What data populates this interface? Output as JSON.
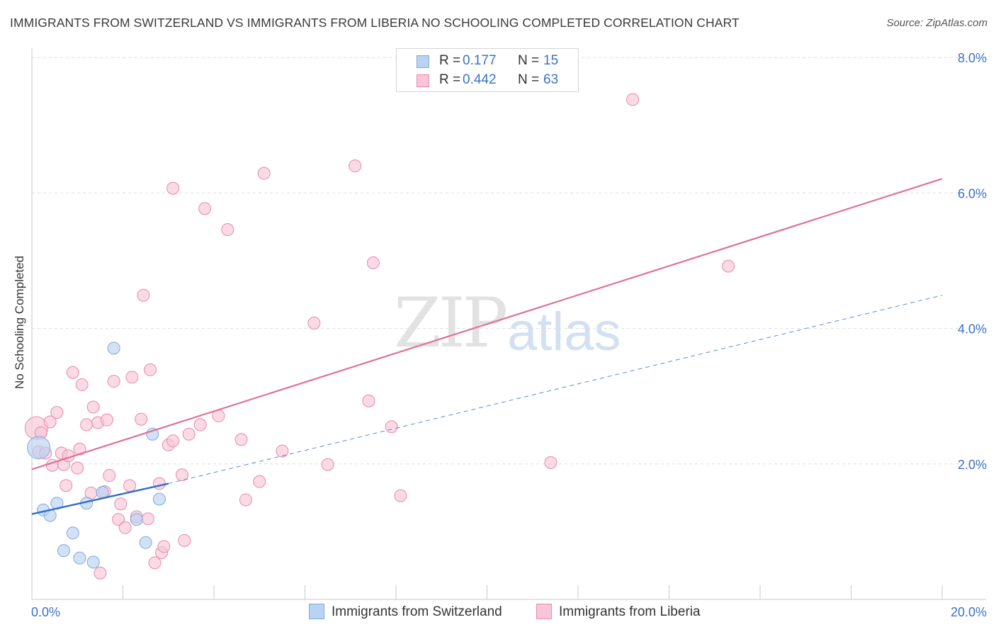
{
  "header": {
    "title": "IMMIGRANTS FROM SWITZERLAND VS IMMIGRANTS FROM LIBERIA NO SCHOOLING COMPLETED CORRELATION CHART",
    "source": "Source: ZipAtlas.com"
  },
  "watermark": {
    "zip": "ZIP",
    "atlas": "atlas"
  },
  "legend": {
    "series1": {
      "r_label": "R =",
      "r_value": "0.177",
      "n_label": "N =",
      "n_value": "15"
    },
    "series2": {
      "r_label": "R =",
      "r_value": "0.442",
      "n_label": "N =",
      "n_value": "63"
    }
  },
  "colors": {
    "switzerland_fill": "#b9d3f3",
    "switzerland_stroke": "#7fa8dc",
    "switzerland_line": "#2f6fcc",
    "liberia_fill": "#f8c6d6",
    "liberia_stroke": "#e98aab",
    "liberia_line": "#e0709a",
    "grid": "#dddddd",
    "axis_text": "#3a72c8"
  },
  "chart_data": {
    "type": "scatter",
    "title": "IMMIGRANTS FROM SWITZERLAND VS IMMIGRANTS FROM LIBERIA NO SCHOOLING COMPLETED CORRELATION CHART",
    "xlabel": "",
    "ylabel": "No Schooling Completed",
    "xlim": [
      0,
      20
    ],
    "ylim": [
      0,
      8
    ],
    "x_tick_labels": [
      "0.0%",
      "20.0%"
    ],
    "y_ticks": [
      2,
      4,
      6,
      8
    ],
    "y_tick_labels": [
      "2.0%",
      "4.0%",
      "6.0%",
      "8.0%"
    ],
    "grid": true,
    "legend_position": "top-center",
    "series": [
      {
        "name": "Immigrants from Switzerland",
        "r": 0.177,
        "n": 15,
        "trend": {
          "x": [
            0,
            3.0
          ],
          "y": [
            1.26,
            1.71
          ],
          "extended": {
            "x": [
              3.0,
              20
            ],
            "y": [
              1.71,
              4.49
            ]
          }
        },
        "points": [
          {
            "x": 0.15,
            "y": 2.24,
            "big": true
          },
          {
            "x": 0.25,
            "y": 1.32
          },
          {
            "x": 0.4,
            "y": 1.24
          },
          {
            "x": 0.55,
            "y": 1.42
          },
          {
            "x": 0.7,
            "y": 0.72
          },
          {
            "x": 0.9,
            "y": 0.98
          },
          {
            "x": 1.05,
            "y": 0.61
          },
          {
            "x": 1.2,
            "y": 1.42
          },
          {
            "x": 1.35,
            "y": 0.55
          },
          {
            "x": 1.55,
            "y": 1.58
          },
          {
            "x": 1.8,
            "y": 3.71
          },
          {
            "x": 2.3,
            "y": 1.18
          },
          {
            "x": 2.5,
            "y": 0.84
          },
          {
            "x": 2.65,
            "y": 2.44
          },
          {
            "x": 2.8,
            "y": 1.48
          }
        ]
      },
      {
        "name": "Immigrants from Liberia",
        "r": 0.442,
        "n": 63,
        "trend": {
          "x": [
            0,
            20
          ],
          "y": [
            1.92,
            6.21
          ]
        },
        "points": [
          {
            "x": 0.1,
            "y": 2.53,
            "big": true
          },
          {
            "x": 0.15,
            "y": 2.18
          },
          {
            "x": 0.2,
            "y": 2.46
          },
          {
            "x": 0.3,
            "y": 2.16
          },
          {
            "x": 0.4,
            "y": 2.62
          },
          {
            "x": 0.45,
            "y": 1.98
          },
          {
            "x": 0.55,
            "y": 2.76
          },
          {
            "x": 0.65,
            "y": 2.16
          },
          {
            "x": 0.7,
            "y": 1.99
          },
          {
            "x": 0.75,
            "y": 1.68
          },
          {
            "x": 0.8,
            "y": 2.12
          },
          {
            "x": 0.9,
            "y": 3.35
          },
          {
            "x": 1.0,
            "y": 1.94
          },
          {
            "x": 1.05,
            "y": 2.22
          },
          {
            "x": 1.1,
            "y": 3.17
          },
          {
            "x": 1.2,
            "y": 2.58
          },
          {
            "x": 1.3,
            "y": 1.57
          },
          {
            "x": 1.35,
            "y": 2.84
          },
          {
            "x": 1.45,
            "y": 2.61
          },
          {
            "x": 1.5,
            "y": 0.39
          },
          {
            "x": 1.6,
            "y": 1.59
          },
          {
            "x": 1.65,
            "y": 2.65
          },
          {
            "x": 1.7,
            "y": 1.83
          },
          {
            "x": 1.8,
            "y": 3.22
          },
          {
            "x": 1.9,
            "y": 1.18
          },
          {
            "x": 1.95,
            "y": 1.41
          },
          {
            "x": 2.05,
            "y": 1.06
          },
          {
            "x": 2.15,
            "y": 1.68
          },
          {
            "x": 2.2,
            "y": 3.28
          },
          {
            "x": 2.3,
            "y": 1.22
          },
          {
            "x": 2.4,
            "y": 2.66
          },
          {
            "x": 2.45,
            "y": 4.49
          },
          {
            "x": 2.55,
            "y": 1.19
          },
          {
            "x": 2.6,
            "y": 3.39
          },
          {
            "x": 2.7,
            "y": 0.54
          },
          {
            "x": 2.8,
            "y": 1.71
          },
          {
            "x": 2.85,
            "y": 0.69
          },
          {
            "x": 2.9,
            "y": 0.78
          },
          {
            "x": 3.0,
            "y": 2.28
          },
          {
            "x": 3.1,
            "y": 2.34
          },
          {
            "x": 3.1,
            "y": 6.07
          },
          {
            "x": 3.3,
            "y": 1.84
          },
          {
            "x": 3.35,
            "y": 0.87
          },
          {
            "x": 3.45,
            "y": 2.44
          },
          {
            "x": 3.7,
            "y": 2.58
          },
          {
            "x": 3.8,
            "y": 5.77
          },
          {
            "x": 4.1,
            "y": 2.71
          },
          {
            "x": 4.3,
            "y": 5.46
          },
          {
            "x": 4.6,
            "y": 2.36
          },
          {
            "x": 4.7,
            "y": 1.47
          },
          {
            "x": 5.0,
            "y": 1.74
          },
          {
            "x": 5.1,
            "y": 6.29
          },
          {
            "x": 5.5,
            "y": 2.19
          },
          {
            "x": 6.2,
            "y": 4.08
          },
          {
            "x": 6.5,
            "y": 1.99
          },
          {
            "x": 7.1,
            "y": 6.4
          },
          {
            "x": 7.4,
            "y": 2.93
          },
          {
            "x": 7.5,
            "y": 4.97
          },
          {
            "x": 7.9,
            "y": 2.55
          },
          {
            "x": 8.1,
            "y": 1.53
          },
          {
            "x": 11.4,
            "y": 2.02
          },
          {
            "x": 13.2,
            "y": 7.38
          },
          {
            "x": 15.3,
            "y": 4.92
          }
        ]
      }
    ]
  }
}
